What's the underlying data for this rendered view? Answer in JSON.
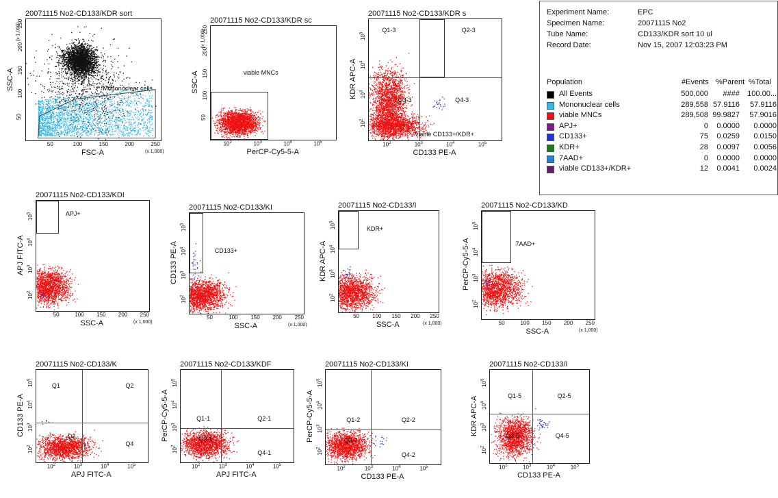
{
  "colors": {
    "red": "#ee1111",
    "cyan": "#33b8e8",
    "black": "#111111",
    "blue": "#2233cc"
  },
  "info": {
    "fields": [
      {
        "label": "Experiment Name:",
        "value": "EPC"
      },
      {
        "label": "Specimen Name:",
        "value": "20071115 No2"
      },
      {
        "label": "Tube Name:",
        "value": "CD133/KDR sort 10 ul"
      },
      {
        "label": "Record Date:",
        "value": "Nov 15, 2007 12:03:23 PM"
      }
    ],
    "headers": {
      "population": "Population",
      "events": "#Events",
      "parent": "%Parent",
      "total": "%Total"
    },
    "rows": [
      {
        "name": "All Events",
        "events": "500,000",
        "parent": "####",
        "total": "100.00...",
        "color": "#000000"
      },
      {
        "name": "Mononuclear cells",
        "events": "289,558",
        "parent": "57.9116",
        "total": "57.9116",
        "color": "#33b8e8"
      },
      {
        "name": "viable MNCs",
        "events": "289,508",
        "parent": "99.9827",
        "total": "57.9016",
        "color": "#ee1111"
      },
      {
        "name": "APJ+",
        "events": "0",
        "parent": "0.0000",
        "total": "0.0000",
        "color": "#7a1a8c"
      },
      {
        "name": "CD133+",
        "events": "75",
        "parent": "0.0259",
        "total": "0.0150",
        "color": "#2233cc"
      },
      {
        "name": "KDR+",
        "events": "28",
        "parent": "0.0097",
        "total": "0.0056",
        "color": "#1a7a1a"
      },
      {
        "name": "7AAD+",
        "events": "0",
        "parent": "0.0000",
        "total": "0.0000",
        "color": "#2a7fd4"
      },
      {
        "name": "viable CD133+/KDR+",
        "events": "12",
        "parent": "0.0041",
        "total": "0.0024",
        "color": "#6a1a6a"
      }
    ]
  },
  "chart_data": [
    {
      "type": "scatter",
      "title": "20071115 No2-CD133/KDR sort",
      "xlabel": "FSC-A",
      "ylabel": "SSC-A",
      "x_scale_note": "(x 1,000)",
      "y_scale_note": "(x 1,000)",
      "x_ticks": [
        "50",
        "100",
        "150",
        "200",
        "250"
      ],
      "y_ticks": [
        "50",
        "100",
        "150",
        "200",
        "250"
      ],
      "xlim": [
        0,
        262
      ],
      "ylim": [
        0,
        262
      ],
      "gates": [
        {
          "label": "Mononuclear cells"
        }
      ],
      "populations": [
        {
          "name": "All Events",
          "color": "#111111"
        },
        {
          "name": "Mononuclear cells",
          "color": "#33b8e8"
        }
      ]
    },
    {
      "type": "scatter",
      "title": "20071115 No2-CD133/KDR sc",
      "xlabel": "PerCP-Cy5-5-A",
      "ylabel": "SSC-A",
      "y_scale_note": "(x 1,000)",
      "x_ticks": [
        "10^2",
        "10^3",
        "10^4",
        "10^5"
      ],
      "y_ticks": [
        "50",
        "100",
        "150",
        "200",
        "250"
      ],
      "x_scale": "log",
      "ylim": [
        0,
        262
      ],
      "gates": [
        {
          "label": "viable MNCs"
        }
      ],
      "populations": [
        {
          "name": "viable MNCs",
          "color": "#ee1111"
        }
      ]
    },
    {
      "type": "scatter",
      "title": "20071115 No2-CD133/KDR s",
      "xlabel": "CD133 PE-A",
      "ylabel": "KDR APC-A",
      "x_ticks": [
        "10^2",
        "10^3",
        "10^4",
        "10^5"
      ],
      "y_ticks": [
        "10^2",
        "10^3",
        "10^4",
        "10^5"
      ],
      "x_scale": "log",
      "y_scale": "log",
      "quadrants": [
        "Q1-3",
        "Q2-3",
        "Q3-3",
        "Q4-3"
      ],
      "gates": [
        {
          "label": "viable CD133+/KDR+"
        }
      ],
      "populations": [
        {
          "name": "viable MNCs",
          "color": "#ee1111"
        },
        {
          "name": "CD133+",
          "color": "#2233cc"
        }
      ]
    },
    {
      "type": "scatter",
      "title": "20071115 No2-CD133/KDI",
      "xlabel": "SSC-A",
      "ylabel": "APJ FITC-A",
      "x_scale_note": "(x 1,000)",
      "x_ticks": [
        "50",
        "100",
        "150",
        "200",
        "250"
      ],
      "y_ticks": [
        "10^2",
        "10^3",
        "10^4",
        "10^5"
      ],
      "y_scale": "log",
      "gates": [
        {
          "label": "APJ+"
        }
      ]
    },
    {
      "type": "scatter",
      "title": "20071115 No2-CD133/KI",
      "xlabel": "SSC-A",
      "ylabel": "CD133 PE-A",
      "x_scale_note": "(x 1,000)",
      "x_ticks": [
        "50",
        "100",
        "150",
        "200",
        "250"
      ],
      "y_ticks": [
        "10^2",
        "10^3",
        "10^4",
        "10^5"
      ],
      "y_scale": "log",
      "gates": [
        {
          "label": "CD133+"
        }
      ]
    },
    {
      "type": "scatter",
      "title": "20071115 No2-CD133/I",
      "xlabel": "SSC-A",
      "ylabel": "KDR APC-A",
      "x_scale_note": "(x 1,000)",
      "x_ticks": [
        "50",
        "100",
        "150",
        "200",
        "250"
      ],
      "y_ticks": [
        "10^2",
        "10^3",
        "10^4",
        "10^5"
      ],
      "y_scale": "log",
      "gates": [
        {
          "label": "KDR+"
        }
      ]
    },
    {
      "type": "scatter",
      "title": "20071115 No2-CD133/KD",
      "xlabel": "SSC-A",
      "ylabel": "PerCP-Cy5-5-A",
      "x_scale_note": "(x 1,000)",
      "x_ticks": [
        "50",
        "100",
        "150",
        "200",
        "250"
      ],
      "y_ticks": [
        "10^2",
        "10^3",
        "10^4",
        "10^5"
      ],
      "y_scale": "log",
      "gates": [
        {
          "label": "7AAD+"
        }
      ]
    },
    {
      "type": "scatter",
      "title": "20071115 No2-CD133/K",
      "xlabel": "APJ FITC-A",
      "ylabel": "CD133 PE-A",
      "x_ticks": [
        "10^2",
        "10^3",
        "10^4",
        "10^5"
      ],
      "y_ticks": [
        "10^2",
        "10^3",
        "10^4",
        "10^5"
      ],
      "x_scale": "log",
      "y_scale": "log",
      "quadrants": [
        "Q1",
        "Q2",
        "Q3",
        "Q4"
      ]
    },
    {
      "type": "scatter",
      "title": "20071115 No2-CD133/KDF",
      "xlabel": "APJ FITC-A",
      "ylabel": "PerCP-Cy5-5-A",
      "x_ticks": [
        "10^2",
        "10^3",
        "10^4",
        "10^5"
      ],
      "y_ticks": [
        "10^2",
        "10^3",
        "10^4",
        "10^5"
      ],
      "x_scale": "log",
      "y_scale": "log",
      "quadrants": [
        "Q1-1",
        "Q2-1",
        "Q3-1",
        "Q4-1"
      ]
    },
    {
      "type": "scatter",
      "title": "20071115 No2-CD133/KI",
      "xlabel": "CD133 PE-A",
      "ylabel": "PerCP-Cy5-5-A",
      "x_ticks": [
        "10^2",
        "10^3",
        "10^4",
        "10^5"
      ],
      "y_ticks": [
        "10^2",
        "10^3",
        "10^4",
        "10^5"
      ],
      "x_scale": "log",
      "y_scale": "log",
      "quadrants": [
        "Q1-2",
        "Q2-2",
        "Q3-2",
        "Q4-2"
      ]
    },
    {
      "type": "scatter",
      "title": "20071115 No2-CD133/I",
      "xlabel": "CD133 PE-A",
      "ylabel": "KDR APC-A",
      "x_ticks": [
        "10^2",
        "10^3",
        "10^4",
        "10^5"
      ],
      "y_ticks": [
        "10^2",
        "10^3",
        "10^4",
        "10^5"
      ],
      "x_scale": "log",
      "y_scale": "log",
      "quadrants": [
        "Q1-5",
        "Q2-5",
        "Q3-5",
        "Q4-5"
      ]
    }
  ]
}
